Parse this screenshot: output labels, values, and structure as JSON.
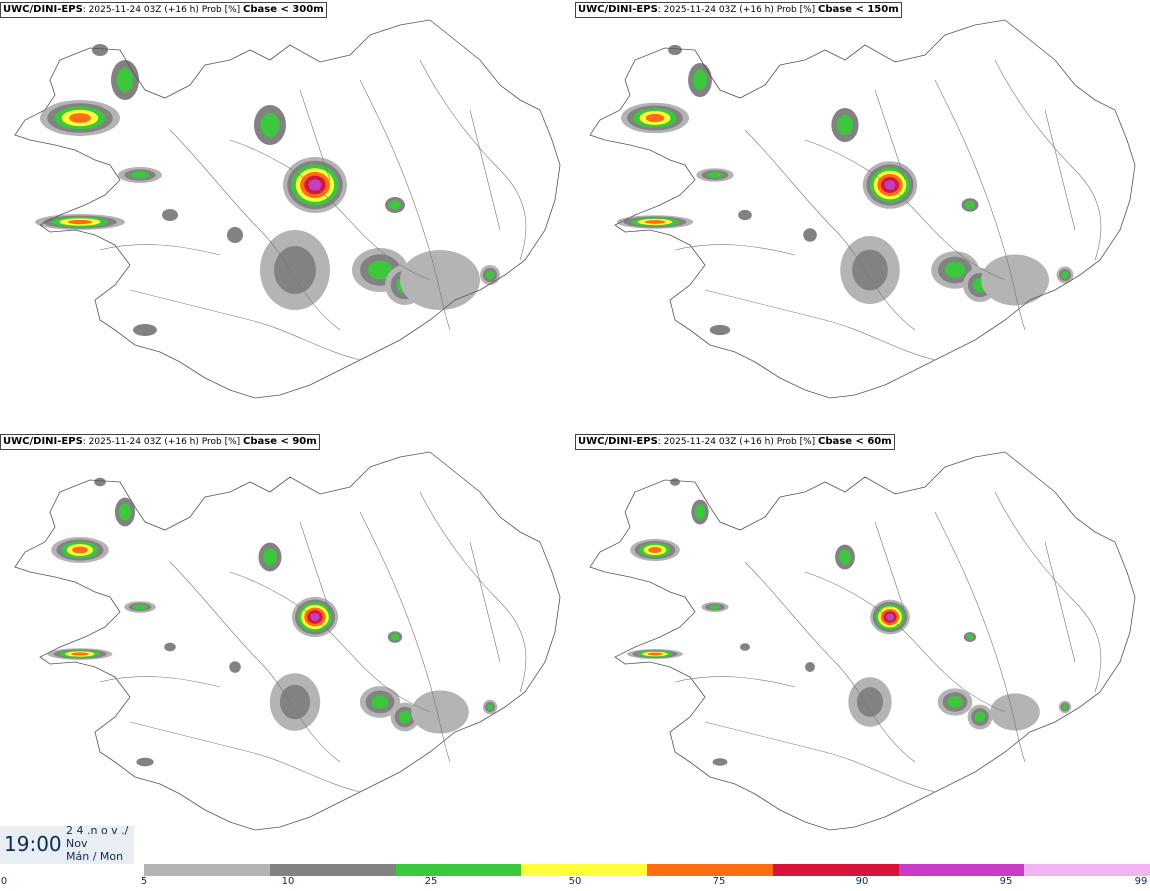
{
  "panels": [
    {
      "model": "UWC/DINI-EPS",
      "meta": ": 2025-11-24 03Z (+16 h) Prob [%] ",
      "cbase": "Cbase < 300m"
    },
    {
      "model": "UWC/DINI-EPS",
      "meta": ": 2025-11-24 03Z (+16 h) Prob [%] ",
      "cbase": "Cbase < 150m"
    },
    {
      "model": "UWC/DINI-EPS",
      "meta": ": 2025-11-24 03Z (+16 h) Prob [%] ",
      "cbase": "Cbase < 90m"
    },
    {
      "model": "UWC/DINI-EPS",
      "meta": ": 2025-11-24 03Z (+16 h) Prob [%] ",
      "cbase": "Cbase < 60m"
    }
  ],
  "timestamp": {
    "time": "19:00",
    "date_line1": "2 4 .n o v ./",
    "date_line2": "Nov",
    "date_line3": "Mán / Mon"
  },
  "colorbar": {
    "ticks": [
      "0",
      "5",
      "10",
      "25",
      "50",
      "75",
      "90",
      "95",
      "99"
    ],
    "colors": [
      "#b4b4b4",
      "#828282",
      "#3cc83c",
      "#ffff3c",
      "#ff6e14",
      "#d7143c",
      "#c83cc8",
      "#f0b4f0"
    ]
  }
}
